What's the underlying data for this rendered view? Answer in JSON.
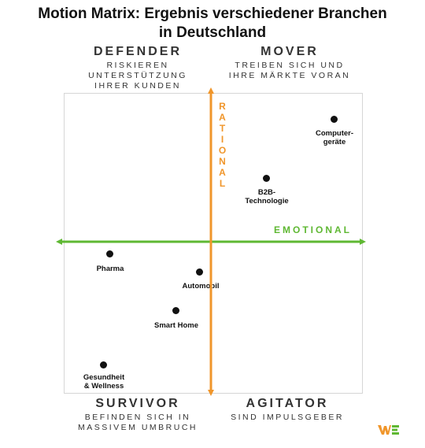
{
  "title": {
    "line1": "Motion Matrix: Ergebnis verschiedener Branchen",
    "line2": "in Deutschland"
  },
  "quadrants": {
    "defender": {
      "name": "DEFENDER",
      "sub1": "RISKIEREN",
      "sub2": "UNTERSTÜTZUNG",
      "sub3": "IHRER KUNDEN"
    },
    "mover": {
      "name": "MOVER",
      "sub1": "TREIBEN SICH UND",
      "sub2": "IHRE MÄRKTE VORAN"
    },
    "survivor": {
      "name": "SURVIVOR",
      "sub1": "BEFINDEN SICH IN",
      "sub2": "MASSIVEM UMBRUCH"
    },
    "agitator": {
      "name": "AGITATOR",
      "sub1": "SIND IMPULSGEBER"
    }
  },
  "axes": {
    "vertical": {
      "label": "RATIONAL",
      "color": "#f0962b"
    },
    "horizontal": {
      "label": "EMOTIONAL",
      "color": "#5fb833"
    }
  },
  "points": [
    {
      "line1": "Computer-",
      "line2": "geräte"
    },
    {
      "line1": "B2B-",
      "line2": "Technologie"
    },
    {
      "line1": "Pharma",
      "line2": ""
    },
    {
      "line1": "Automobil",
      "line2": ""
    },
    {
      "line1": "Smart Home",
      "line2": ""
    },
    {
      "line1": "Gesundheit",
      "line2": "& Wellness"
    }
  ],
  "logo": {
    "name": "we-logo",
    "colors": [
      "#f0962b",
      "#5fb833"
    ]
  }
}
